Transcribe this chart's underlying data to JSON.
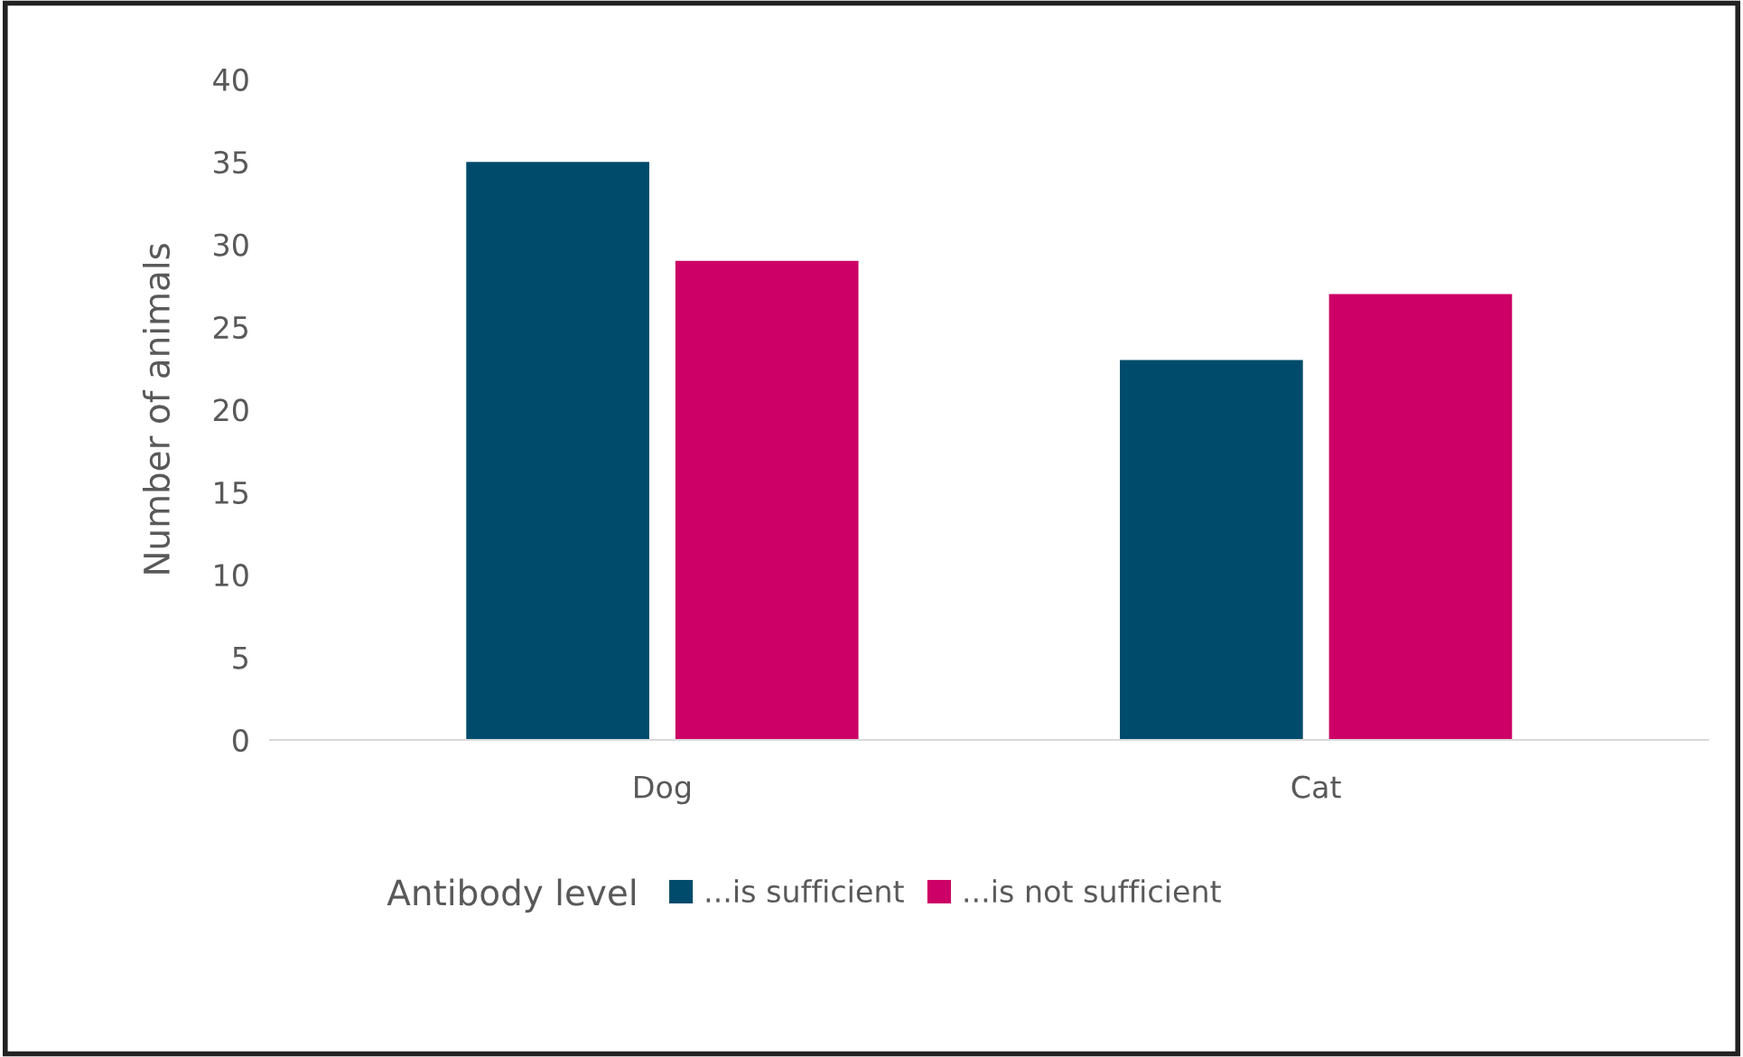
{
  "chart_data": {
    "type": "bar",
    "ylabel": "Number of animals",
    "legend_title": "Antibody level",
    "categories": [
      "Dog",
      "Cat"
    ],
    "series": [
      {
        "name": "...is sufficient",
        "color": "#004b6b",
        "values": [
          35,
          23
        ]
      },
      {
        "name": "...is not sufficient",
        "color": "#cc0066",
        "values": [
          29,
          27
        ]
      }
    ],
    "ylim": [
      0,
      40
    ],
    "yticks": [
      0,
      5,
      10,
      15,
      20,
      25,
      30,
      35,
      40
    ],
    "grid": false,
    "legend": "bottom"
  }
}
